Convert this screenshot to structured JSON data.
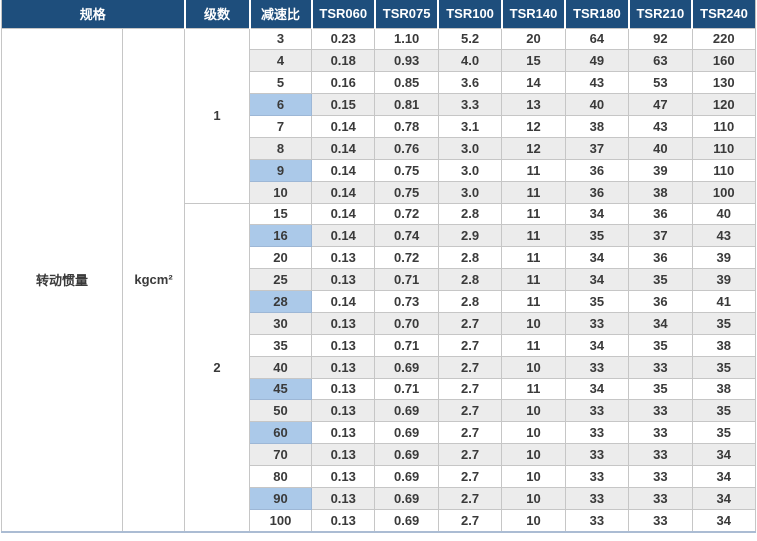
{
  "table": {
    "headers": [
      "规格",
      "级数",
      "减速比",
      "TSR060",
      "TSR075",
      "TSR100",
      "TSR140",
      "TSR180",
      "TSR210",
      "TSR240"
    ],
    "spec_label": "转动惯量",
    "unit_label": "kgcm²",
    "stage_groups": [
      {
        "stage": "1",
        "rows": [
          {
            "ratio": "3",
            "highlight": false,
            "values": [
              "0.23",
              "1.10",
              "5.2",
              "20",
              "64",
              "92",
              "220"
            ]
          },
          {
            "ratio": "4",
            "highlight": false,
            "values": [
              "0.18",
              "0.93",
              "4.0",
              "15",
              "49",
              "63",
              "160"
            ]
          },
          {
            "ratio": "5",
            "highlight": false,
            "values": [
              "0.16",
              "0.85",
              "3.6",
              "14",
              "43",
              "53",
              "130"
            ]
          },
          {
            "ratio": "6",
            "highlight": true,
            "values": [
              "0.15",
              "0.81",
              "3.3",
              "13",
              "40",
              "47",
              "120"
            ]
          },
          {
            "ratio": "7",
            "highlight": false,
            "values": [
              "0.14",
              "0.78",
              "3.1",
              "12",
              "38",
              "43",
              "110"
            ]
          },
          {
            "ratio": "8",
            "highlight": false,
            "values": [
              "0.14",
              "0.76",
              "3.0",
              "12",
              "37",
              "40",
              "110"
            ]
          },
          {
            "ratio": "9",
            "highlight": true,
            "values": [
              "0.14",
              "0.75",
              "3.0",
              "11",
              "36",
              "39",
              "110"
            ]
          },
          {
            "ratio": "10",
            "highlight": false,
            "values": [
              "0.14",
              "0.75",
              "3.0",
              "11",
              "36",
              "38",
              "100"
            ]
          }
        ]
      },
      {
        "stage": "2",
        "rows": [
          {
            "ratio": "15",
            "highlight": false,
            "values": [
              "0.14",
              "0.72",
              "2.8",
              "11",
              "34",
              "36",
              "40"
            ]
          },
          {
            "ratio": "16",
            "highlight": true,
            "values": [
              "0.14",
              "0.74",
              "2.9",
              "11",
              "35",
              "37",
              "43"
            ]
          },
          {
            "ratio": "20",
            "highlight": false,
            "values": [
              "0.13",
              "0.72",
              "2.8",
              "11",
              "34",
              "36",
              "39"
            ]
          },
          {
            "ratio": "25",
            "highlight": false,
            "values": [
              "0.13",
              "0.71",
              "2.8",
              "11",
              "34",
              "35",
              "39"
            ]
          },
          {
            "ratio": "28",
            "highlight": true,
            "values": [
              "0.14",
              "0.73",
              "2.8",
              "11",
              "35",
              "36",
              "41"
            ]
          },
          {
            "ratio": "30",
            "highlight": false,
            "values": [
              "0.13",
              "0.70",
              "2.7",
              "10",
              "33",
              "34",
              "35"
            ]
          },
          {
            "ratio": "35",
            "highlight": false,
            "values": [
              "0.13",
              "0.71",
              "2.7",
              "11",
              "34",
              "35",
              "38"
            ]
          },
          {
            "ratio": "40",
            "highlight": false,
            "values": [
              "0.13",
              "0.69",
              "2.7",
              "10",
              "33",
              "33",
              "35"
            ]
          },
          {
            "ratio": "45",
            "highlight": true,
            "values": [
              "0.13",
              "0.71",
              "2.7",
              "11",
              "34",
              "35",
              "38"
            ]
          },
          {
            "ratio": "50",
            "highlight": false,
            "values": [
              "0.13",
              "0.69",
              "2.7",
              "10",
              "33",
              "33",
              "35"
            ]
          },
          {
            "ratio": "60",
            "highlight": true,
            "values": [
              "0.13",
              "0.69",
              "2.7",
              "10",
              "33",
              "33",
              "35"
            ]
          },
          {
            "ratio": "70",
            "highlight": false,
            "values": [
              "0.13",
              "0.69",
              "2.7",
              "10",
              "33",
              "33",
              "34"
            ]
          },
          {
            "ratio": "80",
            "highlight": false,
            "values": [
              "0.13",
              "0.69",
              "2.7",
              "10",
              "33",
              "33",
              "34"
            ]
          },
          {
            "ratio": "90",
            "highlight": true,
            "values": [
              "0.13",
              "0.69",
              "2.7",
              "10",
              "33",
              "33",
              "34"
            ]
          },
          {
            "ratio": "100",
            "highlight": false,
            "values": [
              "0.13",
              "0.69",
              "2.7",
              "10",
              "33",
              "33",
              "34"
            ]
          }
        ]
      }
    ],
    "colors": {
      "header_bg": "#1e4e7c",
      "highlight_bg": "#abc9e9",
      "stripe_bg": "#ececec",
      "cell_border": "#c6c6c6",
      "bottom_rule": "#abbcd3"
    }
  }
}
